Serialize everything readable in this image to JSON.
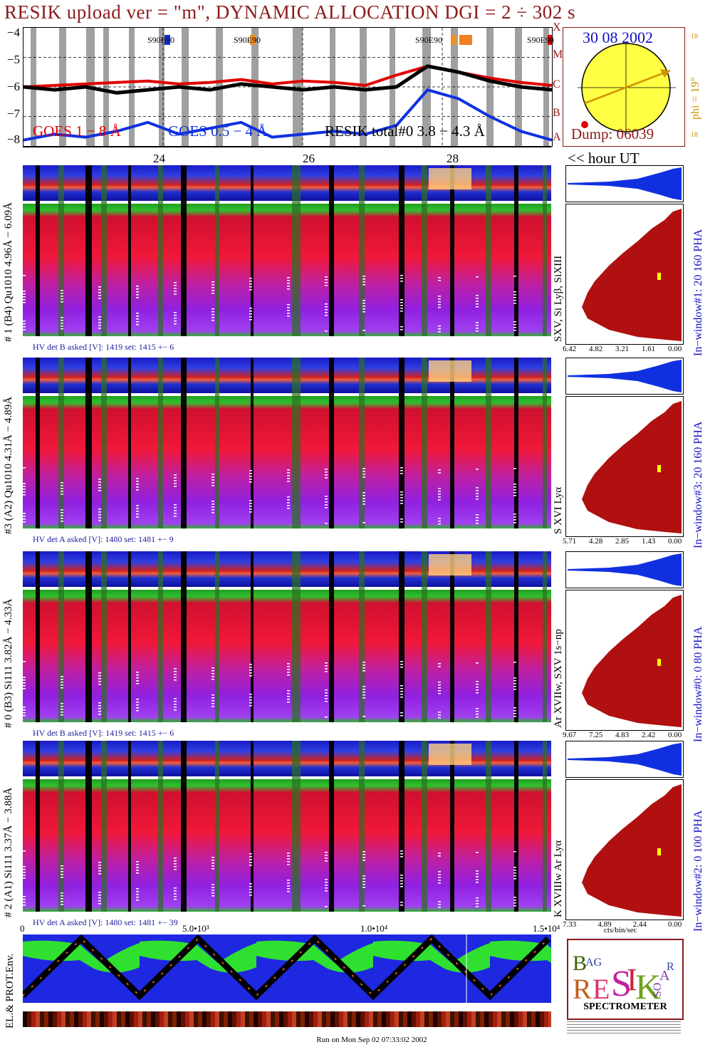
{
  "title": "RESIK upload ver = \"m\", DYNAMIC ALLOCATION  DGI =   2 ÷ 302 s",
  "colors": {
    "title": "#8b1a1a",
    "goes_long": "#e00000",
    "goes_short": "#1030e0",
    "resik": "#000000",
    "date": "#1010c0",
    "phi": "#d09000"
  },
  "lightcurve": {
    "y_ticks": [
      "−4",
      "−5",
      "−6",
      "−7",
      "−8"
    ],
    "right_letters": [
      "X",
      "M",
      "C",
      "B",
      "A"
    ],
    "legend_goes_long": "GOES 1 − 8 Å",
    "legend_goes_short": "GOES 0.5 − 4 Å",
    "legend_resik": "RESIK total#0  3.8 − 4.3 Å",
    "markers": [
      "S90E90",
      "S90E90",
      "S90E90",
      "S90E90"
    ]
  },
  "sun": {
    "date": "30 08 2002",
    "phi": "phi = 19°",
    "dump": "Dump: 06039",
    "side_top": "18",
    "side_bottom": "18"
  },
  "time_axis": {
    "ticks": [
      "24",
      "26",
      "28"
    ],
    "unit_label": "<< hour UT"
  },
  "channels": [
    {
      "id": "ch1",
      "left_label": "# 1 (B4) Qu1010 4.96Å − 6.09Å",
      "right_label": "In−window#1:   20 160  PHA",
      "lines_label": "SXV, Si Lyβ, SiXIII",
      "hv": "HV det B asked [V]:  1419 set:  1415  +−   6",
      "pha_ticks": [
        "6.42",
        "4.82",
        "3.21",
        "1.61",
        "0.00"
      ]
    },
    {
      "id": "ch3",
      "left_label": "#3 (A2) Qu1010  4.31Å − 4.89Å",
      "right_label": "In−window#3:   20 160  PHA",
      "lines_label": "S XVI Lyα",
      "hv": "HV det A asked [V]:  1480 set:  1481  +−   9",
      "pha_ticks": [
        "5.71",
        "4.28",
        "2.85",
        "1.43",
        "0.00"
      ]
    },
    {
      "id": "ch0",
      "left_label": "# 0 (B3) Si111  3.82Å − 4.33Å",
      "right_label": "In−window#0:   0   80  PHA",
      "lines_label": "Ar XVIIw,  SXV 1s−np",
      "hv": "HV det B asked [V]:  1419 set:  1415  +−   6",
      "pha_ticks": [
        "9.67",
        "7.25",
        "4.83",
        "2.42",
        "0.00"
      ]
    },
    {
      "id": "ch2",
      "left_label": "# 2 (A1) Si111  3.37Å − 3.88Å",
      "right_label": "In−window#2:   0  100  PHA",
      "lines_label": "K XVIIIw  Ar Lyα",
      "hv": "HV det A asked [V]:  1480 set:  1481  +−  39",
      "pha_ticks": [
        "7.33",
        "4.89",
        "2.44",
        "0.00"
      ]
    }
  ],
  "bottom_axis": {
    "ticks": [
      "0",
      "5.0•10³",
      "1.0•10⁴",
      "1.5•10⁴"
    ],
    "unit": "cts/bin/sec"
  },
  "env_label": "EL.& PROT.Env.",
  "logo": {
    "letters": "RESIK",
    "small": [
      "B",
      "A",
      "G",
      "S",
      "O",
      "L",
      "A",
      "R"
    ],
    "caption": "SPECTROMETER"
  },
  "footer": "Run on Mon Sep 02 07:33:02 2002",
  "chart_data": {
    "type": "line",
    "title": "RESIK upload ver = \"m\", DYNAMIC ALLOCATION  DGI =   2 ÷ 302 s",
    "xlabel": "<< hour UT",
    "ylabel": "",
    "x_ticks": [
      "24",
      "26",
      "28"
    ],
    "y_scale": "log",
    "ylim": [
      -8,
      -4
    ],
    "series": [
      {
        "name": "GOES 1 − 8 Å",
        "values": [
          -6.0,
          -5.95,
          -5.9,
          -5.85,
          -5.8,
          -5.9,
          -5.85,
          -5.75,
          -5.9,
          -5.8,
          -5.85,
          -5.95,
          -5.6,
          -5.3,
          -5.5,
          -5.7,
          -5.85,
          -5.95
        ]
      },
      {
        "name": "GOES 0.5 − 4 Å",
        "values": [
          -7.8,
          -7.6,
          -7.7,
          -7.5,
          -7.2,
          -7.6,
          -7.4,
          -7.2,
          -7.7,
          -7.6,
          -7.5,
          -7.6,
          -7.3,
          -6.1,
          -6.4,
          -7.0,
          -7.5,
          -7.8
        ]
      },
      {
        "name": "RESIK total#0  3.8 − 4.3 Å",
        "values": [
          -6.0,
          -6.1,
          -6.0,
          -6.2,
          -6.1,
          -6.0,
          -6.1,
          -5.9,
          -6.0,
          -6.1,
          -6.0,
          -6.1,
          -6.0,
          -5.3,
          -5.5,
          -5.8,
          -6.0,
          -6.1
        ]
      }
    ]
  }
}
